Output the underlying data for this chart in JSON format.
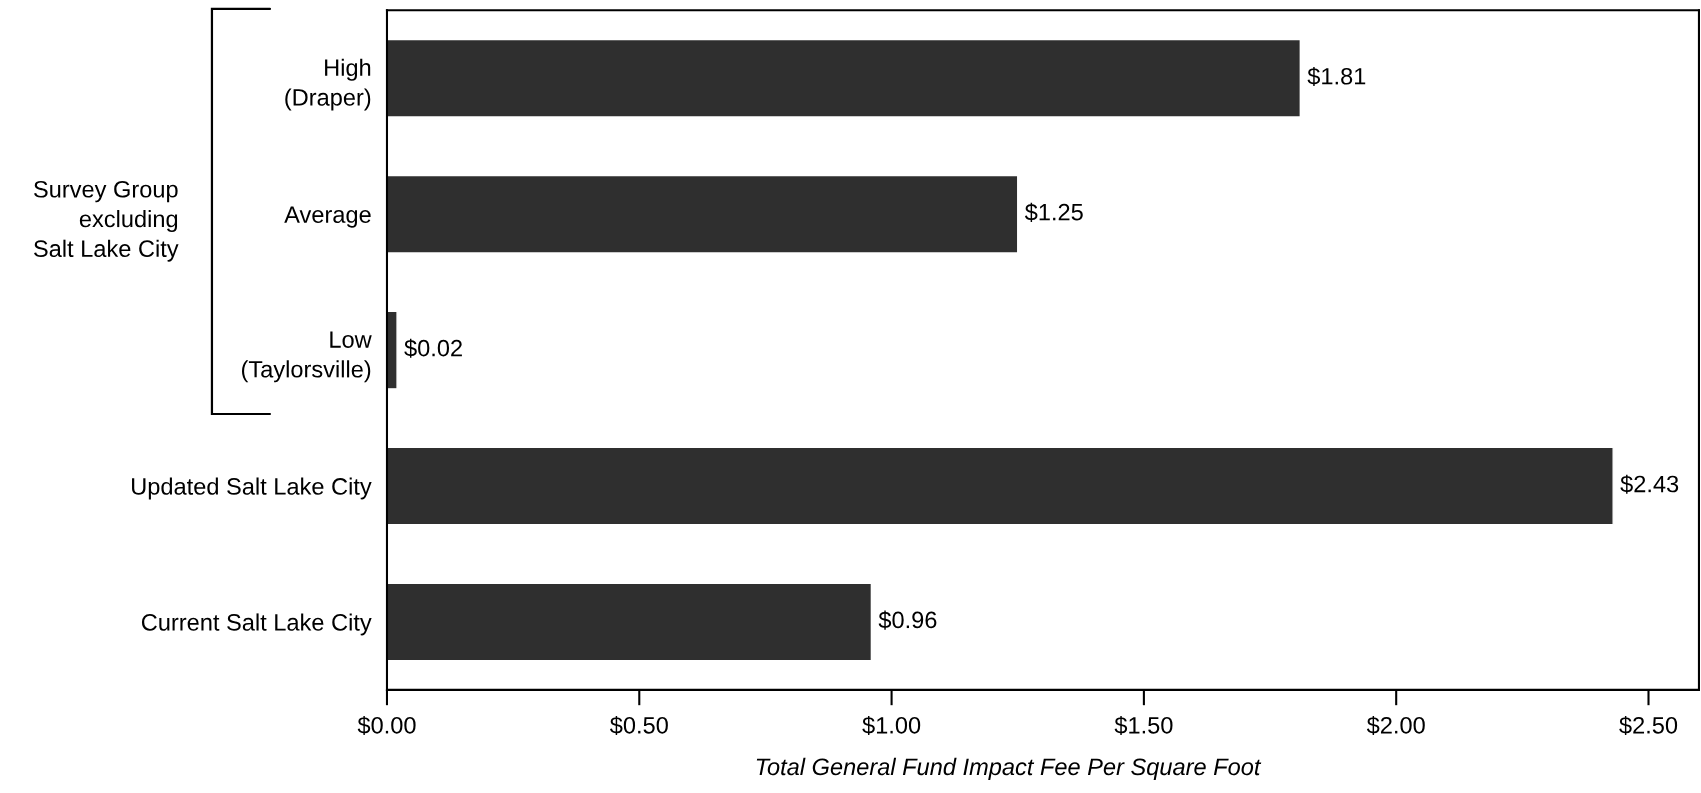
{
  "chart_data": {
    "type": "bar",
    "orientation": "horizontal",
    "categories": [
      "High\n(Draper)",
      "Average",
      "Low\n(Taylorsville)",
      "Updated Salt Lake City",
      "Current Salt Lake City"
    ],
    "values": [
      1.81,
      1.25,
      0.02,
      2.43,
      0.96
    ],
    "color": "#2f2f2f",
    "value_labels": [
      "$1.81",
      "$1.25",
      "$0.02",
      "$2.43",
      "$0.96"
    ],
    "xlabel": "Total General Fund Impact Fee Per Square Foot",
    "xlim": [
      0,
      2.6
    ],
    "xticks": [
      {
        "value": 0,
        "label": "$0.00"
      },
      {
        "value": 0.5,
        "label": "$0.50"
      },
      {
        "value": 1.0,
        "label": "$1.00"
      },
      {
        "value": 1.5,
        "label": "$1.50"
      },
      {
        "value": 2.0,
        "label": "$2.00"
      },
      {
        "value": 2.5,
        "label": "$2.50"
      }
    ],
    "annotations": [
      "Survey Group\nexcluding\nSalt Lake City"
    ],
    "grid": false
  }
}
